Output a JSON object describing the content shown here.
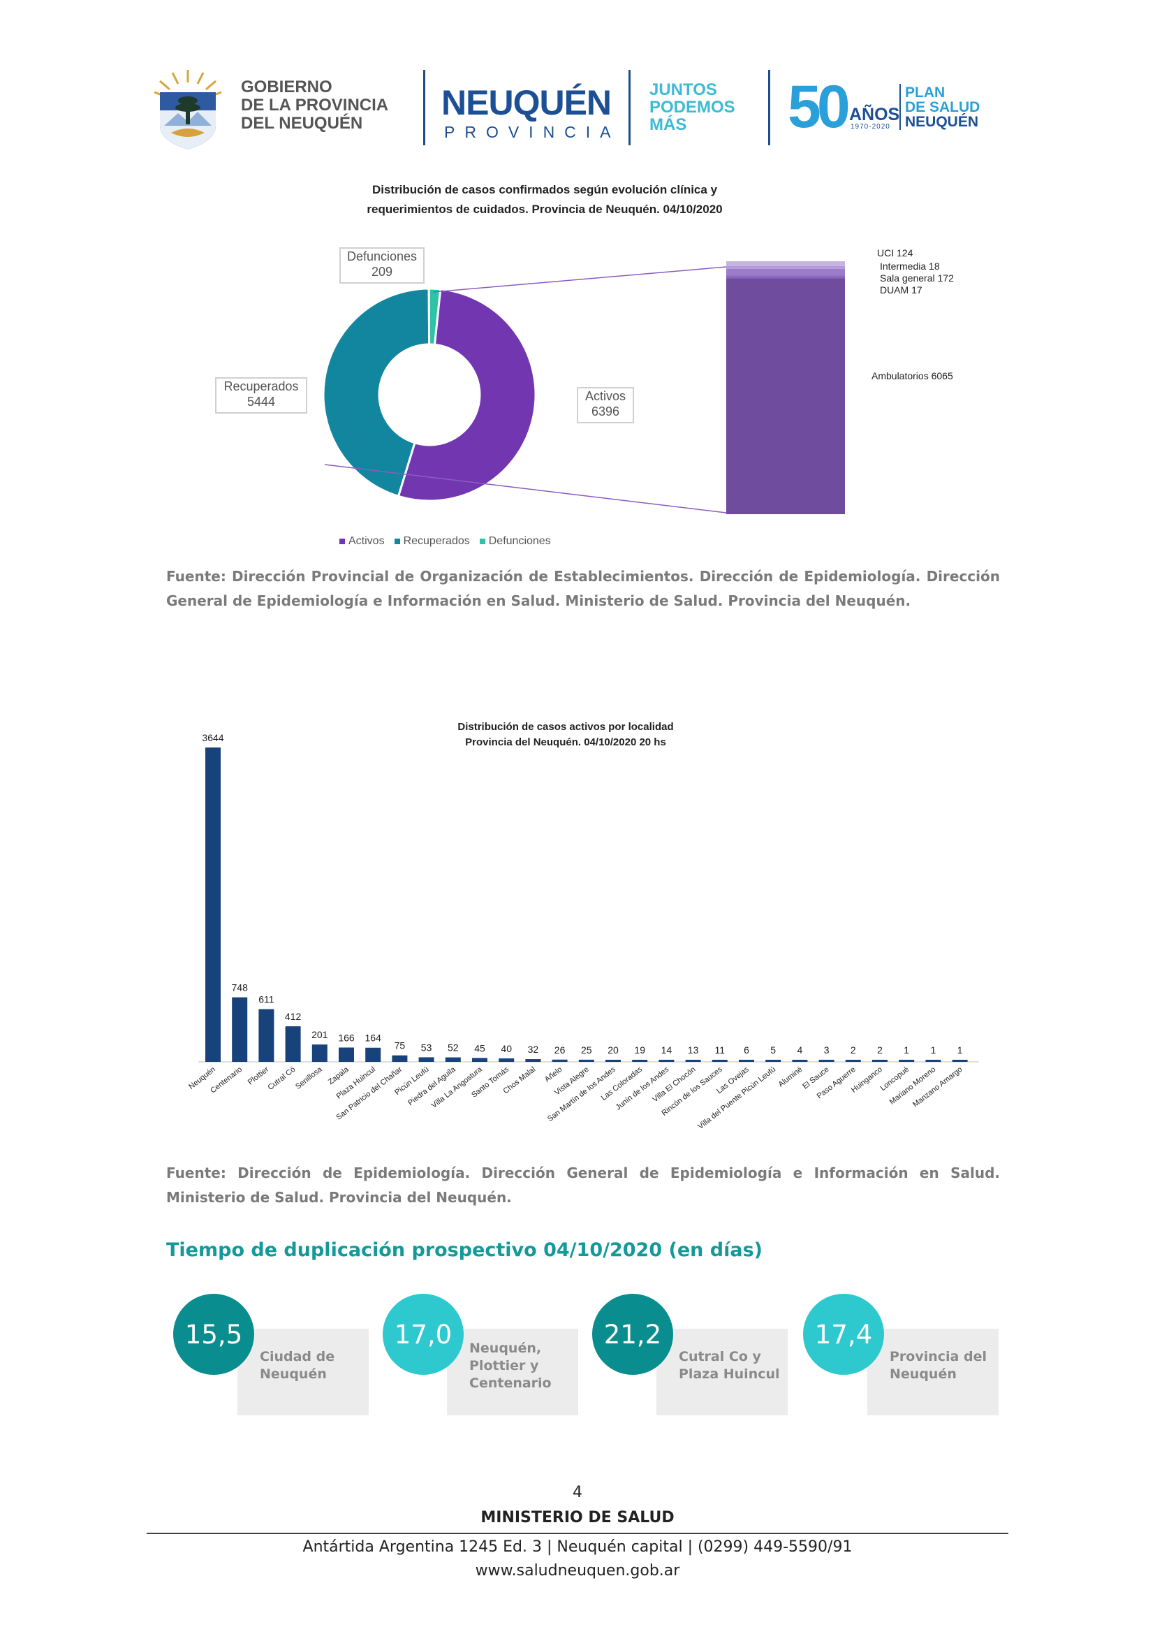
{
  "header": {
    "gov_line1": "GOBIERNO",
    "gov_line2": "DE LA PROVINCIA",
    "gov_line3": "DEL NEUQUÉN",
    "neuquen_title": "NEUQUÉN",
    "neuquen_sub": "PROVINCIA",
    "juntos_line1": "JUNTOS",
    "juntos_line2": "PODEMOS",
    "juntos_line3": "MÁS",
    "fifty": "50",
    "anios": "AÑOS",
    "anios_range": "1970-2020",
    "plan_line1": "PLAN",
    "plan_line2": "DE SALUD",
    "plan_line3": "NEUQUÉN",
    "colors": {
      "navy": "#1d4f95",
      "cyan": "#2b9fd9",
      "light_cyan": "#3cbad6"
    }
  },
  "chart_data": [
    {
      "type": "pie",
      "title_line1": "Distribución de casos confirmados según evolución clínica y",
      "title_line2": "requerimientos de cuidados. Provincia de Neuquén. 04/10/2020",
      "slices": [
        {
          "name": "Activos",
          "value": 6396,
          "color": "#7237b0"
        },
        {
          "name": "Recuperados",
          "value": 5444,
          "color": "#12869f"
        },
        {
          "name": "Defunciones",
          "value": 209,
          "color": "#2ec2a6"
        }
      ],
      "labels": {
        "defunciones_name": "Defunciones",
        "defunciones_value": "209",
        "recuperados_name": "Recuperados",
        "recuperados_value": "5444",
        "activos_name": "Activos",
        "activos_value": "6396"
      },
      "legend": [
        "Activos",
        "Recuperados",
        "Defunciones"
      ],
      "breakdown": {
        "type": "stacked-bar",
        "segments": [
          {
            "label": "UCI 124",
            "value": 124,
            "color": "#c6b3e3"
          },
          {
            "label": "Intermedia 18",
            "value": 18,
            "color": "#b49bd8"
          },
          {
            "label": "Sala general 172",
            "value": 172,
            "color": "#9b7ccb"
          },
          {
            "label": "DUAM 17",
            "value": 17,
            "color": "#8a68be"
          },
          {
            "label": "Ambulatorios 6065",
            "value": 6065,
            "color": "#704c9e"
          }
        ]
      }
    },
    {
      "type": "bar",
      "title_line1": "Distribución de casos activos por localidad",
      "title_line2": "Provincia del Neuquén.  04/10/2020   20  hs",
      "color": "#17427a",
      "categories": [
        "Neuquén",
        "Centenario",
        "Plottier",
        "Cutral Có",
        "Senillosa",
        "Zapala",
        "Plaza Huincul",
        "San Patricio del Chañar",
        "Picún Leufú",
        "Piedra del Aguila",
        "Villa La Angostura",
        "Santo Tomás",
        "Chos Malal",
        "Añelo",
        "Vista Alegre",
        "San Martín de los Andes",
        "Las Coloradas",
        "Junín de los Andes",
        "Villa El Chocón",
        "Rincón de los Sauces",
        "Las Ovejas",
        "Villa del Puente Picún Leufú",
        "Aluminé",
        "El Sauce",
        "Paso Aguerre",
        "Huinganco",
        "Loncopué",
        "Mariano Moreno",
        "Manzano Amargo"
      ],
      "values": [
        3644,
        748,
        611,
        412,
        201,
        166,
        164,
        75,
        53,
        52,
        45,
        40,
        32,
        26,
        25,
        20,
        19,
        14,
        13,
        11,
        6,
        5,
        4,
        3,
        2,
        2,
        1,
        1,
        1
      ]
    }
  ],
  "sources": {
    "first": "Fuente: Dirección Provincial de Organización de Establecimientos. Dirección de Epidemiología. Dirección General de Epidemiología e Información en Salud. Ministerio de Salud. Provincia del Neuquén.",
    "second": "Fuente: Dirección de Epidemiología. Dirección General de Epidemiología e Información en Salud. Ministerio de Salud. Provincia del Neuquén."
  },
  "duplication": {
    "title": "Tiempo de duplicación prospectivo 04/10/2020 (en días)",
    "cards": [
      {
        "value": "15,5",
        "label_line1": "Ciudad de",
        "label_line2": "Neuquén",
        "label_line3": "",
        "color": "#0a8d8e"
      },
      {
        "value": "17,0",
        "label_line1": "Neuquén,",
        "label_line2": "Plottier y",
        "label_line3": "Centenario",
        "color": "#2ec9cf"
      },
      {
        "value": "21,2",
        "label_line1": "Cutral Co y",
        "label_line2": "Plaza Huincul",
        "label_line3": "",
        "color": "#0a8d8e"
      },
      {
        "value": "17,4",
        "label_line1": "Provincia del",
        "label_line2": "Neuquén",
        "label_line3": "",
        "color": "#2ec9cf"
      }
    ]
  },
  "footer": {
    "page_number": "4",
    "ministry": "MINISTERIO DE SALUD",
    "address": "Antártida Argentina 1245 Ed. 3 | Neuquén capital | (0299) 449-5590/91",
    "website": "www.saludneuquen.gob.ar"
  }
}
